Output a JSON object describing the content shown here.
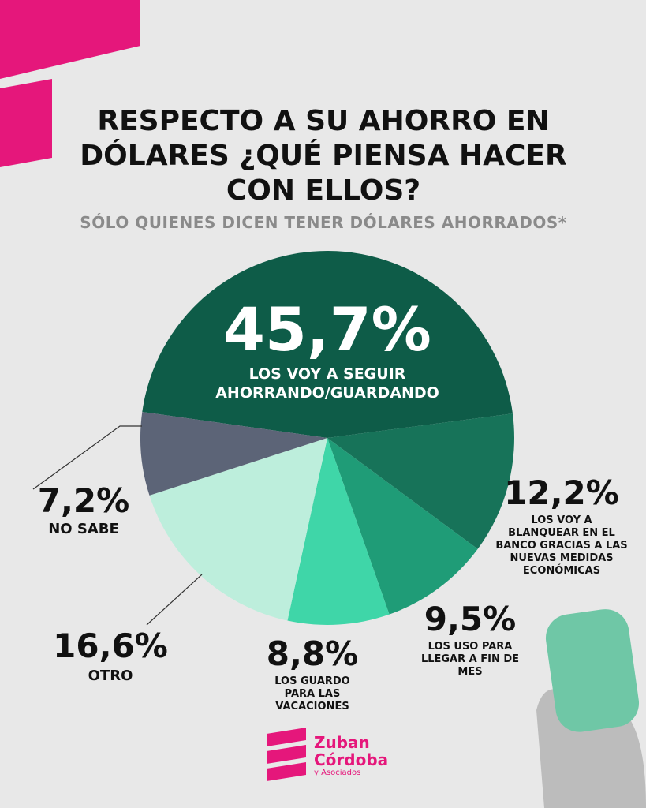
{
  "chart_data": {
    "type": "pie",
    "title": "RESPECTO A SU AHORRO EN DÓLARES ¿QUÉ PIENSA HACER CON ELLOS?",
    "subtitle": "SÓLO QUIENES DICEN TENER DÓLARES AHORRADOS*",
    "categories": [
      "LOS VOY A SEGUIR AHORRANDO/GUARDANDO",
      "LOS VOY A BLANQUEAR EN EL BANCO GRACIAS A LAS NUEVAS MEDIDAS ECONÓMICAS",
      "LOS USO PARA LLEGAR A FIN DE MES",
      "LOS GUARDO PARA LAS VACACIONES",
      "OTRO",
      "NO SABE"
    ],
    "values": [
      45.7,
      12.2,
      9.5,
      8.8,
      16.6,
      7.2
    ],
    "value_labels": [
      "45,7%",
      "12,2%",
      "9,5%",
      "8,8%",
      "16,6%",
      "7,2%"
    ],
    "colors": [
      "#0e5c48",
      "#177359",
      "#1f9c77",
      "#3fd6a8",
      "#bdeedc",
      "#5c6477"
    ]
  },
  "brand": {
    "name_1": "Zuban",
    "name_2": "Córdoba",
    "name_3": "y Asociados"
  }
}
